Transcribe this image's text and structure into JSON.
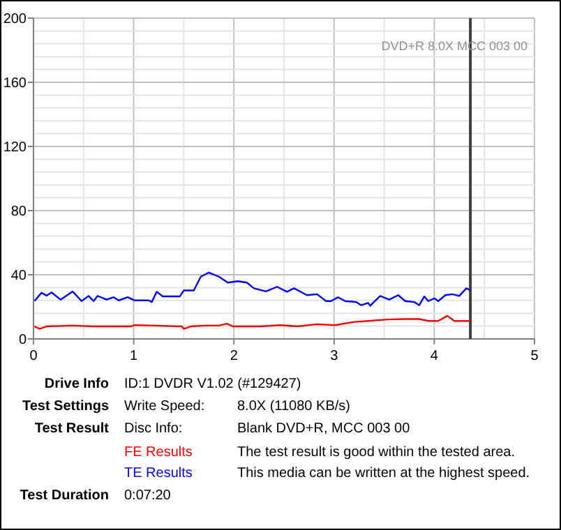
{
  "chart_data": {
    "type": "line",
    "xlim": [
      0,
      5
    ],
    "ylim": [
      0,
      200
    ],
    "xticks": [
      0,
      {
        "value": 0.5,
        "label": null
      },
      1,
      {
        "value": 1.5,
        "label": null
      },
      2,
      {
        "value": 2.5,
        "label": null
      },
      3,
      {
        "value": 3.5,
        "label": null
      },
      4,
      {
        "value": 4.5,
        "label": null
      },
      5
    ],
    "yticks": [
      0,
      {
        "value": 8,
        "label": null
      },
      {
        "value": 16,
        "label": null
      },
      {
        "value": 24,
        "label": null
      },
      {
        "value": 32,
        "label": null
      },
      40,
      {
        "value": 48,
        "label": null
      },
      {
        "value": 56,
        "label": null
      },
      {
        "value": 64,
        "label": null
      },
      {
        "value": 72,
        "label": null
      },
      80,
      {
        "value": 88,
        "label": null
      },
      {
        "value": 96,
        "label": null
      },
      {
        "value": 104,
        "label": null
      },
      {
        "value": 112,
        "label": null
      },
      120,
      {
        "value": 128,
        "label": null
      },
      {
        "value": 136,
        "label": null
      },
      {
        "value": 144,
        "label": null
      },
      {
        "value": 152,
        "label": null
      },
      160,
      {
        "value": 168,
        "label": null
      },
      {
        "value": 176,
        "label": null
      },
      {
        "value": 184,
        "label": null
      },
      {
        "value": 192,
        "label": null
      },
      200
    ],
    "grid": true,
    "legend": "bottom",
    "marker": "none",
    "line_style": "solid",
    "ref_lines": [
      {
        "axis": "x",
        "value": 4.36,
        "color": "#404040"
      }
    ],
    "series": [
      {
        "name": "FE Results",
        "color": "#ff0000",
        "x": [
          0.01,
          0.06,
          0.13,
          0.39,
          0.6,
          0.97,
          1.01,
          1.2,
          1.48,
          1.5,
          1.57,
          1.71,
          1.85,
          1.93,
          1.99,
          2.27,
          2.46,
          2.64,
          2.83,
          3.01,
          3.2,
          3.34,
          3.53,
          3.71,
          3.85,
          3.94,
          4.04,
          4.13,
          4.2,
          4.36
        ],
        "values": [
          7.8,
          6.3,
          7.8,
          8.3,
          7.8,
          7.8,
          8.6,
          8.3,
          7.8,
          6.3,
          7.8,
          8.3,
          8.3,
          9.5,
          7.8,
          7.8,
          8.6,
          7.8,
          9.2,
          8.6,
          10.6,
          11.2,
          12.1,
          12.4,
          12.4,
          11.2,
          11.2,
          14.4,
          11.2,
          11.2
        ]
      },
      {
        "name": "TE Results",
        "color": "#0000ff",
        "x": [
          0.01,
          0.08,
          0.13,
          0.18,
          0.27,
          0.39,
          0.48,
          0.55,
          0.6,
          0.64,
          0.73,
          0.8,
          0.85,
          0.94,
          1.01,
          1.15,
          1.18,
          1.23,
          1.29,
          1.46,
          1.5,
          1.6,
          1.67,
          1.75,
          1.85,
          1.94,
          2.04,
          2.13,
          2.2,
          2.32,
          2.43,
          2.53,
          2.6,
          2.73,
          2.83,
          2.92,
          2.97,
          3.04,
          3.11,
          3.22,
          3.27,
          3.34,
          3.36,
          3.46,
          3.55,
          3.64,
          3.71,
          3.8,
          3.85,
          3.9,
          3.94,
          4.0,
          4.04,
          4.11,
          4.18,
          4.25,
          4.32,
          4.36
        ],
        "values": [
          23.6,
          28.8,
          27,
          29,
          24.5,
          29.6,
          23.6,
          26.8,
          23.6,
          26.8,
          24.5,
          26,
          24,
          26,
          24,
          24,
          23,
          29.4,
          26.5,
          26.5,
          30.2,
          30.2,
          38.8,
          41.4,
          38.8,
          35.1,
          36,
          35.1,
          31.6,
          29.6,
          32.5,
          29.4,
          31.6,
          27.3,
          27.9,
          23.6,
          23.6,
          26,
          23.6,
          23,
          21,
          22.4,
          20.7,
          26.8,
          24.5,
          27.3,
          23.6,
          23,
          21,
          26.5,
          23.6,
          25.3,
          23.6,
          27.3,
          27.9,
          26.8,
          31.6,
          30.2
        ]
      }
    ],
    "annotations": [
      "DVD+R 8.0X MCC 003 00",
      "Drive Info",
      "ID:1 DVDR V1.02 (#129427)",
      "Test Settings",
      "Write Speed:",
      "8.0X (11080 KB/s)",
      "Test Result",
      "Disc Info:",
      "Blank DVD+R, MCC 003 00",
      "The test result is good within the tested area.",
      "This media can be written at the highest speed.",
      "Test Duration",
      "0:07:20"
    ]
  }
}
